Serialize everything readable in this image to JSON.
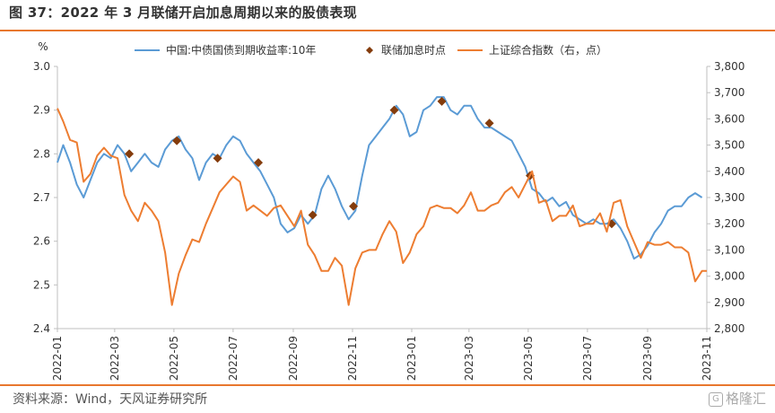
{
  "title": "图 37：2022 年 3 月联储开启加息周期以来的股债表现",
  "source": "资料来源：Wind，天风证券研究所",
  "watermark": "格隆汇",
  "colors": {
    "yield": "#5b9bd5",
    "index": "#ed7d31",
    "hike": "#843c0c",
    "rule": "#e8772e",
    "axis": "#bfbfbf"
  },
  "chart_data": {
    "type": "line",
    "legend_position": "top",
    "grid": false,
    "y_left": {
      "unit_label": "%",
      "range": [
        2.4,
        3.0
      ],
      "ticks": [
        "2.4",
        "2.5",
        "2.6",
        "2.7",
        "2.8",
        "2.9",
        "3.0"
      ]
    },
    "y_right": {
      "range": [
        2800,
        3800
      ],
      "ticks": [
        "2,800",
        "2,900",
        "3,000",
        "3,100",
        "3,200",
        "3,300",
        "3,400",
        "3,500",
        "3,600",
        "3,700",
        "3,800"
      ]
    },
    "x_range": [
      "2022-01-01",
      "2023-11-01"
    ],
    "x_ticks": [
      "2022-01",
      "2022-03",
      "2022-05",
      "2022-07",
      "2022-09",
      "2022-11",
      "2023-01",
      "2023-03",
      "2023-05",
      "2023-07",
      "2023-09",
      "2023-11"
    ],
    "series": [
      {
        "name": "中国:中债国债到期收益率:10年",
        "axis": "left",
        "marker": "line",
        "points": [
          [
            "2022-01-01",
            2.78
          ],
          [
            "2022-01-07",
            2.82
          ],
          [
            "2022-01-14",
            2.78
          ],
          [
            "2022-01-21",
            2.73
          ],
          [
            "2022-01-28",
            2.7
          ],
          [
            "2022-02-04",
            2.74
          ],
          [
            "2022-02-11",
            2.78
          ],
          [
            "2022-02-18",
            2.8
          ],
          [
            "2022-02-25",
            2.79
          ],
          [
            "2022-03-04",
            2.82
          ],
          [
            "2022-03-11",
            2.8
          ],
          [
            "2022-03-18",
            2.76
          ],
          [
            "2022-03-25",
            2.78
          ],
          [
            "2022-04-01",
            2.8
          ],
          [
            "2022-04-08",
            2.78
          ],
          [
            "2022-04-15",
            2.77
          ],
          [
            "2022-04-22",
            2.81
          ],
          [
            "2022-04-29",
            2.83
          ],
          [
            "2022-05-06",
            2.84
          ],
          [
            "2022-05-13",
            2.81
          ],
          [
            "2022-05-20",
            2.79
          ],
          [
            "2022-05-27",
            2.74
          ],
          [
            "2022-06-03",
            2.78
          ],
          [
            "2022-06-10",
            2.8
          ],
          [
            "2022-06-17",
            2.79
          ],
          [
            "2022-06-24",
            2.82
          ],
          [
            "2022-07-01",
            2.84
          ],
          [
            "2022-07-08",
            2.83
          ],
          [
            "2022-07-15",
            2.8
          ],
          [
            "2022-07-22",
            2.78
          ],
          [
            "2022-07-29",
            2.76
          ],
          [
            "2022-08-05",
            2.73
          ],
          [
            "2022-08-12",
            2.7
          ],
          [
            "2022-08-19",
            2.64
          ],
          [
            "2022-08-26",
            2.62
          ],
          [
            "2022-09-02",
            2.63
          ],
          [
            "2022-09-09",
            2.66
          ],
          [
            "2022-09-16",
            2.64
          ],
          [
            "2022-09-23",
            2.66
          ],
          [
            "2022-09-30",
            2.72
          ],
          [
            "2022-10-07",
            2.75
          ],
          [
            "2022-10-14",
            2.72
          ],
          [
            "2022-10-21",
            2.68
          ],
          [
            "2022-10-28",
            2.65
          ],
          [
            "2022-11-04",
            2.67
          ],
          [
            "2022-11-11",
            2.75
          ],
          [
            "2022-11-18",
            2.82
          ],
          [
            "2022-11-25",
            2.84
          ],
          [
            "2022-12-02",
            2.86
          ],
          [
            "2022-12-09",
            2.88
          ],
          [
            "2022-12-16",
            2.91
          ],
          [
            "2022-12-23",
            2.89
          ],
          [
            "2022-12-30",
            2.84
          ],
          [
            "2023-01-06",
            2.85
          ],
          [
            "2023-01-13",
            2.9
          ],
          [
            "2023-01-20",
            2.91
          ],
          [
            "2023-01-27",
            2.93
          ],
          [
            "2023-02-03",
            2.93
          ],
          [
            "2023-02-10",
            2.9
          ],
          [
            "2023-02-17",
            2.89
          ],
          [
            "2023-02-24",
            2.91
          ],
          [
            "2023-03-03",
            2.91
          ],
          [
            "2023-03-10",
            2.88
          ],
          [
            "2023-03-17",
            2.86
          ],
          [
            "2023-03-24",
            2.86
          ],
          [
            "2023-03-31",
            2.85
          ],
          [
            "2023-04-07",
            2.84
          ],
          [
            "2023-04-14",
            2.83
          ],
          [
            "2023-04-21",
            2.8
          ],
          [
            "2023-04-28",
            2.77
          ],
          [
            "2023-05-05",
            2.72
          ],
          [
            "2023-05-12",
            2.71
          ],
          [
            "2023-05-19",
            2.69
          ],
          [
            "2023-05-26",
            2.7
          ],
          [
            "2023-06-02",
            2.68
          ],
          [
            "2023-06-09",
            2.69
          ],
          [
            "2023-06-16",
            2.66
          ],
          [
            "2023-06-23",
            2.65
          ],
          [
            "2023-06-30",
            2.64
          ],
          [
            "2023-07-07",
            2.65
          ],
          [
            "2023-07-14",
            2.64
          ],
          [
            "2023-07-21",
            2.64
          ],
          [
            "2023-07-28",
            2.65
          ],
          [
            "2023-08-04",
            2.63
          ],
          [
            "2023-08-11",
            2.6
          ],
          [
            "2023-08-18",
            2.56
          ],
          [
            "2023-08-25",
            2.57
          ],
          [
            "2023-09-01",
            2.59
          ],
          [
            "2023-09-08",
            2.62
          ],
          [
            "2023-09-15",
            2.64
          ],
          [
            "2023-09-22",
            2.67
          ],
          [
            "2023-09-29",
            2.68
          ],
          [
            "2023-10-06",
            2.68
          ],
          [
            "2023-10-13",
            2.7
          ],
          [
            "2023-10-20",
            2.71
          ],
          [
            "2023-10-27",
            2.7
          ]
        ]
      },
      {
        "name": "联储加息时点",
        "axis": "left",
        "marker": "diamond",
        "points": [
          [
            "2022-03-16",
            2.8
          ],
          [
            "2022-05-04",
            2.83
          ],
          [
            "2022-06-15",
            2.79
          ],
          [
            "2022-07-27",
            2.78
          ],
          [
            "2022-09-21",
            2.66
          ],
          [
            "2022-11-02",
            2.68
          ],
          [
            "2022-12-14",
            2.9
          ],
          [
            "2023-02-01",
            2.92
          ],
          [
            "2023-03-22",
            2.87
          ],
          [
            "2023-05-03",
            2.75
          ],
          [
            "2023-07-26",
            2.64
          ]
        ]
      },
      {
        "name": "上证综合指数（右，点）",
        "axis": "right",
        "marker": "line",
        "points": [
          [
            "2022-01-01",
            3640
          ],
          [
            "2022-01-07",
            3590
          ],
          [
            "2022-01-14",
            3520
          ],
          [
            "2022-01-21",
            3510
          ],
          [
            "2022-01-28",
            3360
          ],
          [
            "2022-02-04",
            3390
          ],
          [
            "2022-02-11",
            3460
          ],
          [
            "2022-02-18",
            3490
          ],
          [
            "2022-02-25",
            3460
          ],
          [
            "2022-03-04",
            3450
          ],
          [
            "2022-03-11",
            3310
          ],
          [
            "2022-03-18",
            3250
          ],
          [
            "2022-03-25",
            3210
          ],
          [
            "2022-04-01",
            3280
          ],
          [
            "2022-04-08",
            3250
          ],
          [
            "2022-04-15",
            3210
          ],
          [
            "2022-04-22",
            3090
          ],
          [
            "2022-04-29",
            2890
          ],
          [
            "2022-05-06",
            3010
          ],
          [
            "2022-05-13",
            3080
          ],
          [
            "2022-05-20",
            3140
          ],
          [
            "2022-05-27",
            3130
          ],
          [
            "2022-06-03",
            3200
          ],
          [
            "2022-06-10",
            3260
          ],
          [
            "2022-06-17",
            3320
          ],
          [
            "2022-06-24",
            3350
          ],
          [
            "2022-07-01",
            3380
          ],
          [
            "2022-07-08",
            3360
          ],
          [
            "2022-07-15",
            3250
          ],
          [
            "2022-07-22",
            3270
          ],
          [
            "2022-07-29",
            3250
          ],
          [
            "2022-08-05",
            3230
          ],
          [
            "2022-08-12",
            3260
          ],
          [
            "2022-08-19",
            3270
          ],
          [
            "2022-08-26",
            3230
          ],
          [
            "2022-09-02",
            3190
          ],
          [
            "2022-09-09",
            3250
          ],
          [
            "2022-09-16",
            3120
          ],
          [
            "2022-09-23",
            3080
          ],
          [
            "2022-09-30",
            3020
          ],
          [
            "2022-10-07",
            3020
          ],
          [
            "2022-10-14",
            3070
          ],
          [
            "2022-10-21",
            3040
          ],
          [
            "2022-10-28",
            2890
          ],
          [
            "2022-11-04",
            3030
          ],
          [
            "2022-11-11",
            3090
          ],
          [
            "2022-11-18",
            3100
          ],
          [
            "2022-11-25",
            3100
          ],
          [
            "2022-12-02",
            3160
          ],
          [
            "2022-12-09",
            3210
          ],
          [
            "2022-12-16",
            3170
          ],
          [
            "2022-12-23",
            3050
          ],
          [
            "2022-12-30",
            3090
          ],
          [
            "2023-01-06",
            3160
          ],
          [
            "2023-01-13",
            3190
          ],
          [
            "2023-01-20",
            3260
          ],
          [
            "2023-01-27",
            3270
          ],
          [
            "2023-02-03",
            3260
          ],
          [
            "2023-02-10",
            3260
          ],
          [
            "2023-02-17",
            3240
          ],
          [
            "2023-02-24",
            3270
          ],
          [
            "2023-03-03",
            3320
          ],
          [
            "2023-03-10",
            3250
          ],
          [
            "2023-03-17",
            3250
          ],
          [
            "2023-03-24",
            3270
          ],
          [
            "2023-03-31",
            3280
          ],
          [
            "2023-04-07",
            3320
          ],
          [
            "2023-04-14",
            3340
          ],
          [
            "2023-04-21",
            3300
          ],
          [
            "2023-04-28",
            3350
          ],
          [
            "2023-05-05",
            3400
          ],
          [
            "2023-05-12",
            3280
          ],
          [
            "2023-05-19",
            3290
          ],
          [
            "2023-05-26",
            3210
          ],
          [
            "2023-06-02",
            3230
          ],
          [
            "2023-06-09",
            3230
          ],
          [
            "2023-06-16",
            3270
          ],
          [
            "2023-06-23",
            3190
          ],
          [
            "2023-06-30",
            3200
          ],
          [
            "2023-07-07",
            3200
          ],
          [
            "2023-07-14",
            3240
          ],
          [
            "2023-07-21",
            3170
          ],
          [
            "2023-07-28",
            3280
          ],
          [
            "2023-08-04",
            3290
          ],
          [
            "2023-08-11",
            3190
          ],
          [
            "2023-08-18",
            3130
          ],
          [
            "2023-08-25",
            3070
          ],
          [
            "2023-09-01",
            3130
          ],
          [
            "2023-09-08",
            3120
          ],
          [
            "2023-09-15",
            3120
          ],
          [
            "2023-09-22",
            3130
          ],
          [
            "2023-09-29",
            3110
          ],
          [
            "2023-10-06",
            3110
          ],
          [
            "2023-10-13",
            3090
          ],
          [
            "2023-10-20",
            2980
          ],
          [
            "2023-10-27",
            3020
          ],
          [
            "2023-11-01",
            3020
          ]
        ]
      }
    ]
  }
}
